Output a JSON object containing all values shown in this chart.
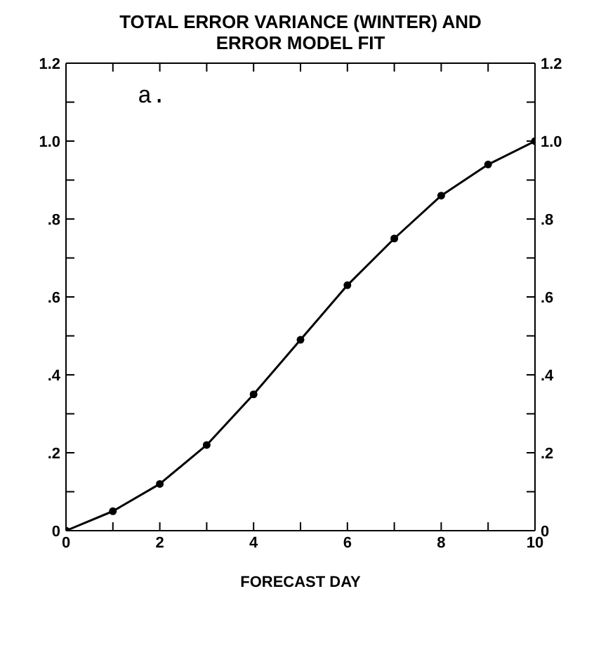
{
  "chart_data": {
    "type": "line",
    "title": "TOTAL ERROR VARIANCE (WINTER) AND ERROR MODEL FIT",
    "xlabel": "FORECAST DAY",
    "annotations": [
      "a."
    ],
    "x": [
      0,
      1,
      2,
      3,
      4,
      5,
      6,
      7,
      8,
      9,
      10
    ],
    "series": [
      {
        "color": "#000000",
        "values": [
          0,
          0.05,
          0.12,
          0.22,
          0.35,
          0.49,
          0.63,
          0.75,
          0.86,
          0.94,
          1.0
        ]
      }
    ],
    "marker": "circle",
    "line_style": "solid",
    "xlim": [
      0,
      10
    ],
    "xticks": [
      0,
      {
        "value": 1,
        "label": null
      },
      2,
      {
        "value": 3,
        "label": null
      },
      4,
      {
        "value": 5,
        "label": null
      },
      6,
      {
        "value": 7,
        "label": null
      },
      8,
      {
        "value": 9,
        "label": null
      },
      10
    ],
    "ylim": [
      0,
      1.2
    ],
    "yticks": [
      0,
      {
        "value": 0.1,
        "label": null
      },
      {
        "value": 0.2,
        "label": ".2"
      },
      {
        "value": 0.3,
        "label": null
      },
      {
        "value": 0.4,
        "label": ".4"
      },
      {
        "value": 0.5,
        "label": null
      },
      {
        "value": 0.6,
        "label": ".6"
      },
      {
        "value": 0.7,
        "label": null
      },
      {
        "value": 0.8,
        "label": ".8"
      },
      {
        "value": 0.9,
        "label": null
      },
      {
        "value": 1.0,
        "label": "1.0"
      },
      {
        "value": 1.1,
        "label": null
      },
      {
        "value": 1.2,
        "label": "1.2"
      }
    ],
    "y2lim": [
      0,
      1.2
    ],
    "y2ticks": [
      0,
      {
        "value": 0.1,
        "label": null
      },
      {
        "value": 0.2,
        "label": ".2"
      },
      {
        "value": 0.3,
        "label": null
      },
      {
        "value": 0.4,
        "label": ".4"
      },
      {
        "value": 0.5,
        "label": null
      },
      {
        "value": 0.6,
        "label": ".6"
      },
      {
        "value": 0.7,
        "label": null
      },
      {
        "value": 0.8,
        "label": ".8"
      },
      {
        "value": 0.9,
        "label": null
      },
      {
        "value": 1.0,
        "label": "1.0"
      },
      {
        "value": 1.1,
        "label": null
      },
      {
        "value": 1.2,
        "label": "1.2"
      }
    ]
  }
}
